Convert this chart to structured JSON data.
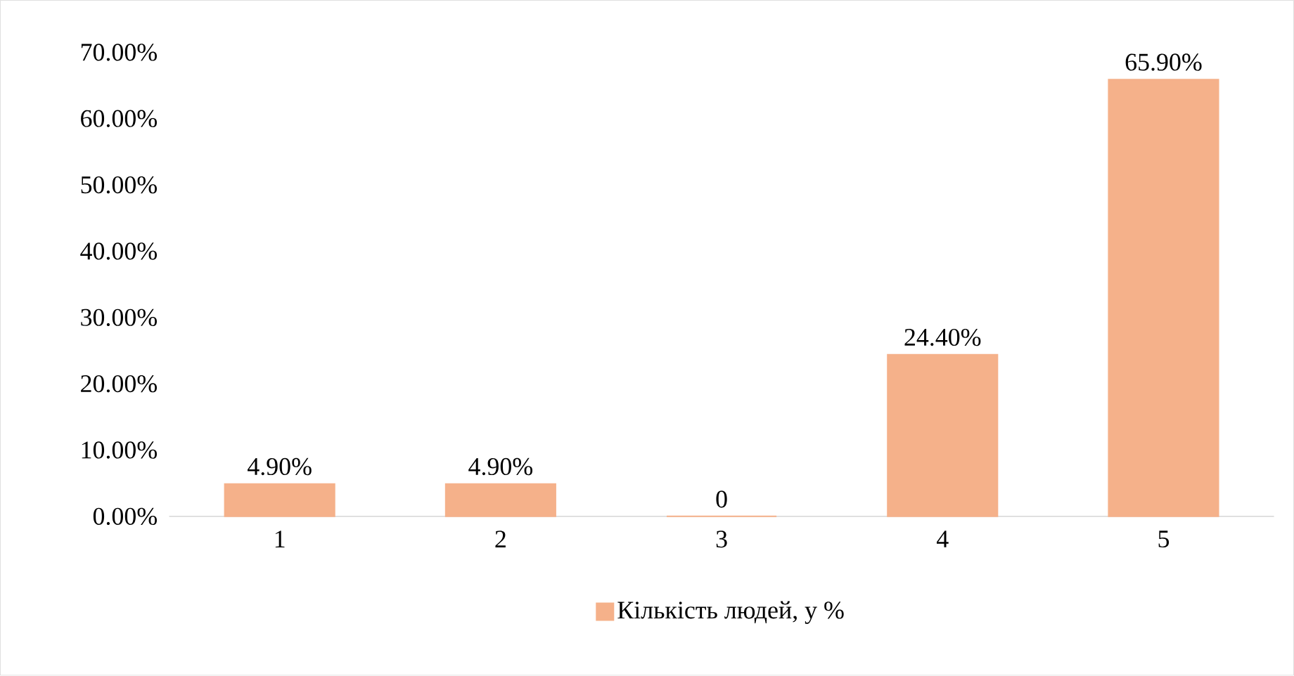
{
  "chart_data": {
    "type": "bar",
    "categories": [
      "1",
      "2",
      "3",
      "4",
      "5"
    ],
    "series": [
      {
        "name": "Кількість людей, у %",
        "color": "#f5b18a",
        "values": [
          4.9,
          4.9,
          0,
          24.4,
          65.9
        ],
        "value_labels": [
          "4.90%",
          "4.90%",
          "0",
          "24.40%",
          "65.90%"
        ]
      }
    ],
    "ylim": [
      0,
      70
    ],
    "yticks": [
      {
        "value": 0,
        "label": "0.00%"
      },
      {
        "value": 10,
        "label": "10.00%"
      },
      {
        "value": 20,
        "label": "20.00%"
      },
      {
        "value": 30,
        "label": "30.00%"
      },
      {
        "value": 40,
        "label": "40.00%"
      },
      {
        "value": 50,
        "label": "50.00%"
      },
      {
        "value": 60,
        "label": "60.00%"
      },
      {
        "value": 70,
        "label": "70.00%"
      }
    ],
    "legend": "bottom"
  }
}
